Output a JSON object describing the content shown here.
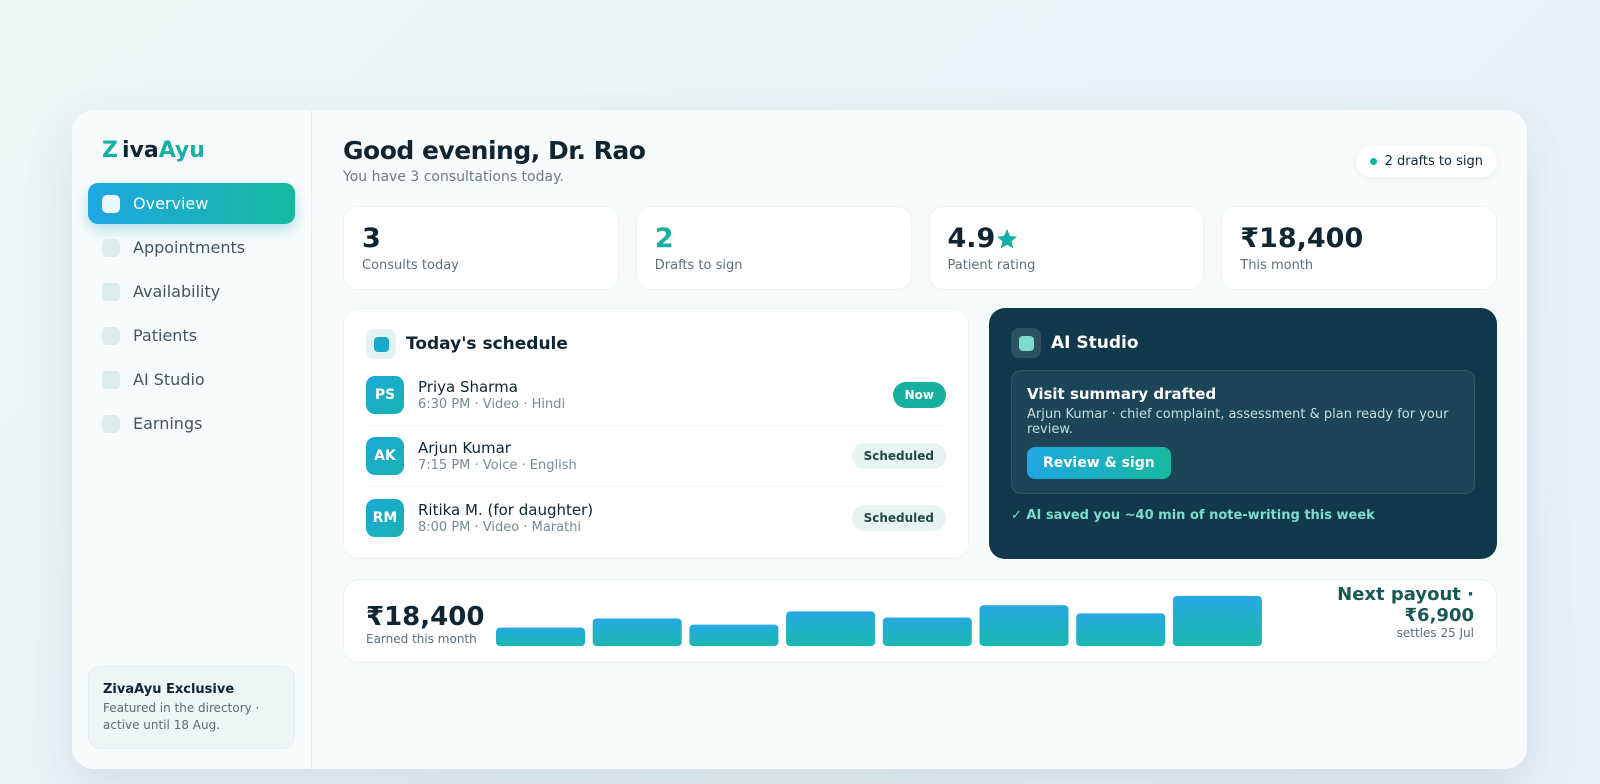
{
  "logo": {
    "mark": "Z",
    "part1": "iva",
    "part2": "Ayu"
  },
  "nav": [
    "Overview",
    "Appointments",
    "Availability",
    "Patients",
    "AI Studio",
    "Earnings"
  ],
  "promo": {
    "title": "ZivaAyu Exclusive",
    "text": "Featured in the directory · active until 18 Aug."
  },
  "header": {
    "title": "Good evening, Dr. Rao",
    "subtitle": "You have 3 consultations today.",
    "badge": "2 drafts to sign"
  },
  "stats": [
    {
      "value": "3",
      "label": "Consults today"
    },
    {
      "value": "2",
      "label": "Drafts to sign"
    },
    {
      "value": "4.9",
      "label": "Patient rating"
    },
    {
      "value": "₹18,400",
      "label": "This month"
    }
  ],
  "schedule": {
    "title": "Today's schedule",
    "rows": [
      {
        "initials": "PS",
        "name": "Priya Sharma",
        "meta": "6:30 PM · Video · Hindi",
        "status": "Now"
      },
      {
        "initials": "AK",
        "name": "Arjun Kumar",
        "meta": "7:15 PM · Voice · English",
        "status": "Scheduled"
      },
      {
        "initials": "RM",
        "name": "Ritika M. (for daughter)",
        "meta": "8:00 PM · Video · Marathi",
        "status": "Scheduled"
      }
    ]
  },
  "ai": {
    "title": "AI Studio",
    "card_title": "Visit summary drafted",
    "card_text": "Arjun Kumar · chief complaint, assessment & plan ready for your review.",
    "button": "Review & sign",
    "footer": "✓ AI saved you ~40 min of note-writing this week"
  },
  "earnings": {
    "amount": "₹18,400",
    "label": "Earned this month",
    "payout": "Next payout · ₹6,900",
    "settles": "settles 25 Jul",
    "chart": {
      "type": "bar",
      "values": [
        18,
        27,
        21,
        34,
        28,
        40,
        32,
        49
      ]
    }
  }
}
